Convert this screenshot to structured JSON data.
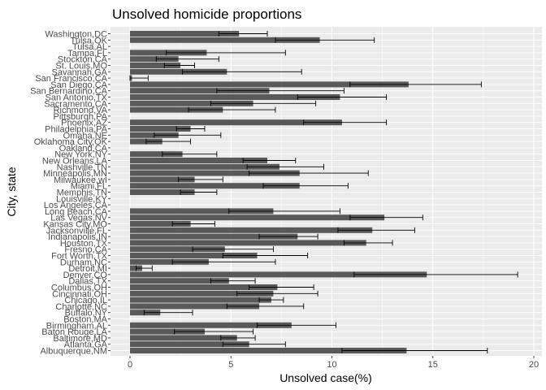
{
  "chart_data": {
    "type": "bar",
    "orientation": "horizontal",
    "title": "Unsolved homicide proportions",
    "xlabel": "Unsolved case(%)",
    "ylabel": "City, state",
    "xlim": [
      0,
      20
    ],
    "xticks": [
      0,
      5,
      10,
      15,
      20
    ],
    "grid": true,
    "legend": "none",
    "colors": {
      "panel": "#ebebeb",
      "grid": "#ffffff",
      "bar": "#595959",
      "errorbar": "#000000",
      "tick_text": "#4d4d4d"
    },
    "categories": [
      "Albuquerque,NM",
      "Atlanta,GA",
      "Baltimore,MD",
      "Baton Rouge,LA",
      "Birmingham,AL",
      "Boston,MA",
      "Buffalo,NY",
      "Charlotte,NC",
      "Chicago,IL",
      "Cincinnati,OH",
      "Columbus,OH",
      "Dallas,TX",
      "Denver,CO",
      "Detroit,MI",
      "Durham,NC",
      "Fort Worth,TX",
      "Fresno,CA",
      "Houston,TX",
      "Indianapolis,IN",
      "Jacksonville,FL",
      "Kansas City,MO",
      "Las Vegas,NV",
      "Long Beach,CA",
      "Los Angeles,CA",
      "Louisville,KY",
      "Memphis,TN",
      "Miami,FL",
      "Milwaukee,wI",
      "Minneapolis,MN",
      "Nashville,TN",
      "New Orleans,LA",
      "New York,NY",
      "Oakland,CA",
      "Oklahoma City,OK",
      "Omaha,NE",
      "Philadelphia,PA",
      "Phoenix,AZ",
      "Pittsburgh,PA",
      "Richmond,VA",
      "Sacramento,CA",
      "San Antonio,TX",
      "San Bernardino,CA",
      "San Diego,CA",
      "San Francisco,CA",
      "Savannah,GA",
      "St. Louis,MO",
      "Stockton,CA",
      "Tampa,FL",
      "Tulsa,AL",
      "Tulsa,OK",
      "Washington,DC"
    ],
    "values": [
      13.7,
      5.9,
      5.3,
      3.7,
      8.0,
      null,
      1.5,
      6.4,
      7.0,
      7.1,
      7.3,
      4.9,
      14.7,
      0.6,
      3.9,
      6.3,
      4.7,
      11.7,
      8.3,
      12.0,
      3.0,
      12.6,
      7.1,
      null,
      null,
      3.2,
      8.4,
      3.2,
      8.4,
      7.4,
      6.8,
      2.6,
      null,
      1.6,
      2.4,
      3.0,
      10.5,
      null,
      4.6,
      6.1,
      10.4,
      6.9,
      13.8,
      0.1,
      4.8,
      2.5,
      2.4,
      3.8,
      null,
      9.4,
      5.4
    ],
    "error_low": [
      10.5,
      4.6,
      4.5,
      2.2,
      6.3,
      null,
      0.7,
      4.8,
      6.4,
      5.3,
      5.9,
      4.0,
      11.1,
      0.3,
      2.1,
      4.6,
      3.1,
      10.6,
      6.4,
      10.3,
      2.1,
      10.9,
      4.9,
      null,
      null,
      2.5,
      6.6,
      2.4,
      5.9,
      5.8,
      5.6,
      1.6,
      null,
      0.8,
      1.2,
      2.3,
      8.6,
      null,
      2.9,
      4.0,
      8.3,
      4.3,
      10.9,
      0.0,
      2.6,
      1.7,
      1.3,
      1.8,
      null,
      7.2,
      4.4
    ],
    "error_high": [
      17.7,
      7.7,
      6.2,
      6.1,
      10.2,
      null,
      3.1,
      8.6,
      7.6,
      9.3,
      9.1,
      6.2,
      19.2,
      1.1,
      7.2,
      8.8,
      7.1,
      13.0,
      9.3,
      14.1,
      4.2,
      14.5,
      10.4,
      null,
      null,
      4.3,
      10.8,
      4.6,
      11.8,
      9.6,
      8.2,
      4.3,
      null,
      3.0,
      4.5,
      3.7,
      12.7,
      null,
      7.2,
      9.2,
      12.7,
      10.6,
      17.4,
      0.9,
      8.5,
      3.2,
      4.4,
      7.7,
      null,
      12.1,
      6.8
    ]
  }
}
